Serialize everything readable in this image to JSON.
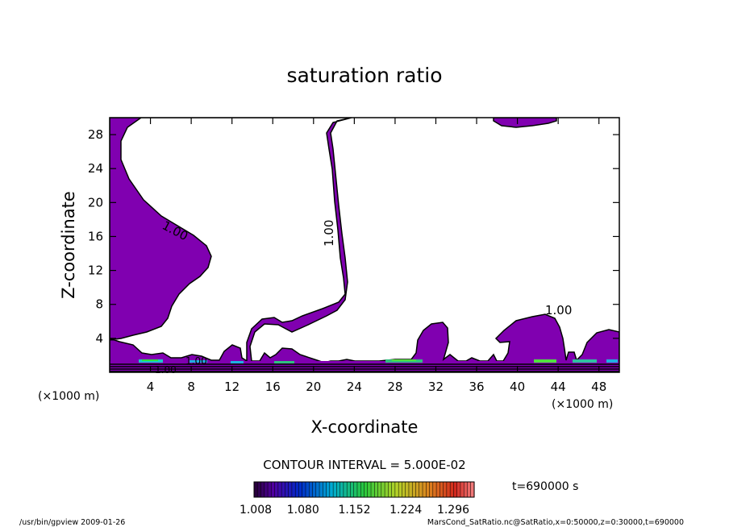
{
  "chart_data": {
    "type": "contour",
    "title": "saturation ratio",
    "xlabel": "X-coordinate",
    "ylabel": "Z-coordinate",
    "x_unit": "(×1000 m)",
    "y_unit": "(×1000 m)",
    "xlim": [
      0,
      50
    ],
    "ylim": [
      0,
      30
    ],
    "x_ticks": [
      "4",
      "8",
      "12",
      "16",
      "20",
      "24",
      "28",
      "32",
      "36",
      "40",
      "44",
      "48"
    ],
    "y_ticks": [
      "4",
      "8",
      "12",
      "16",
      "20",
      "24",
      "28"
    ],
    "contour_labels": [
      "1.00",
      "1.00",
      "1.00",
      "1.00",
      "1.00"
    ],
    "fill_color": "#8000b0",
    "contour_interval": "CONTOUR INTERVAL = 5.000E-02",
    "colorbar_ticks": [
      "1.008",
      "1.080",
      "1.152",
      "1.224",
      "1.296"
    ],
    "time": "t=690000 s",
    "footer_left": "/usr/bin/gpview  2009-01-26",
    "footer_right": "MarsCond_SatRatio.nc@SatRatio,x=0:50000,z=0:30000,t=690000"
  }
}
